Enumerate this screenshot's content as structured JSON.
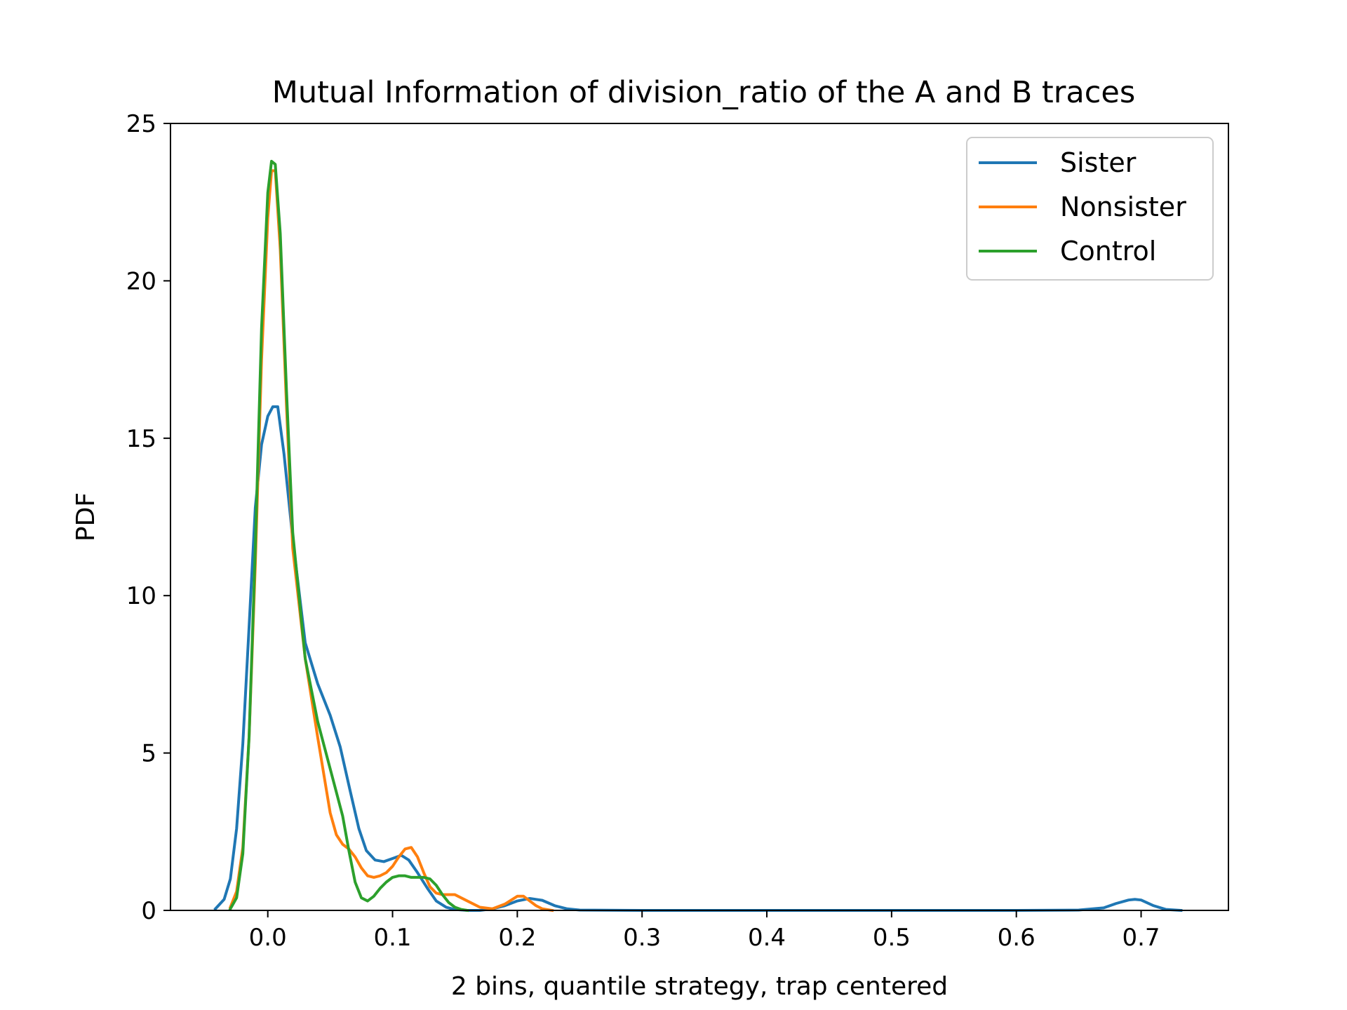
{
  "chart_data": {
    "type": "line",
    "title": "Mutual Information of division_ratio of the A and B traces",
    "xlabel": "2 bins, quantile strategy, trap centered",
    "ylabel": "PDF",
    "xlim": [
      -0.078,
      0.77
    ],
    "ylim": [
      0,
      25
    ],
    "xticks": [
      0.0,
      0.1,
      0.2,
      0.3,
      0.4,
      0.5,
      0.6,
      0.7
    ],
    "xtick_labels": [
      "0.0",
      "0.1",
      "0.2",
      "0.3",
      "0.4",
      "0.5",
      "0.6",
      "0.7"
    ],
    "yticks": [
      0,
      5,
      10,
      15,
      20,
      25
    ],
    "ytick_labels": [
      "0",
      "5",
      "10",
      "15",
      "20",
      "25"
    ],
    "grid": false,
    "legend_position": "top-right",
    "series": [
      {
        "name": "Sister",
        "color": "#1f77b4",
        "x": [
          -0.042,
          -0.035,
          -0.03,
          -0.025,
          -0.02,
          -0.015,
          -0.01,
          -0.005,
          0.0,
          0.004,
          0.008,
          0.013,
          0.02,
          0.03,
          0.04,
          0.05,
          0.058,
          0.066,
          0.073,
          0.079,
          0.086,
          0.093,
          0.1,
          0.107,
          0.113,
          0.12,
          0.128,
          0.135,
          0.143,
          0.15,
          0.16,
          0.17,
          0.18,
          0.19,
          0.2,
          0.21,
          0.22,
          0.23,
          0.24,
          0.25,
          0.3,
          0.4,
          0.5,
          0.6,
          0.65,
          0.67,
          0.68,
          0.69,
          0.695,
          0.7,
          0.71,
          0.72,
          0.732
        ],
        "y": [
          0.05,
          0.35,
          1.0,
          2.6,
          5.3,
          9.0,
          12.8,
          14.8,
          15.7,
          16.0,
          16.0,
          14.5,
          11.8,
          8.5,
          7.2,
          6.2,
          5.2,
          3.8,
          2.6,
          1.9,
          1.6,
          1.55,
          1.65,
          1.75,
          1.6,
          1.2,
          0.7,
          0.3,
          0.1,
          0.03,
          0.0,
          0.0,
          0.05,
          0.15,
          0.3,
          0.38,
          0.32,
          0.15,
          0.05,
          0.01,
          0.0,
          0.0,
          0.0,
          0.0,
          0.01,
          0.08,
          0.22,
          0.33,
          0.35,
          0.33,
          0.15,
          0.03,
          0.0
        ]
      },
      {
        "name": "Nonsister",
        "color": "#ff7f0e",
        "x": [
          -0.03,
          -0.025,
          -0.02,
          -0.015,
          -0.01,
          -0.005,
          0.0,
          0.003,
          0.006,
          0.01,
          0.015,
          0.02,
          0.03,
          0.04,
          0.045,
          0.05,
          0.055,
          0.06,
          0.065,
          0.07,
          0.075,
          0.08,
          0.085,
          0.09,
          0.095,
          0.1,
          0.105,
          0.11,
          0.115,
          0.12,
          0.125,
          0.13,
          0.135,
          0.14,
          0.15,
          0.16,
          0.17,
          0.18,
          0.19,
          0.2,
          0.205,
          0.21,
          0.215,
          0.22,
          0.228
        ],
        "y": [
          0.1,
          0.6,
          2.0,
          5.5,
          11.0,
          17.5,
          22.0,
          23.5,
          23.5,
          21.0,
          16.0,
          11.5,
          8.0,
          5.5,
          4.3,
          3.1,
          2.4,
          2.1,
          1.95,
          1.7,
          1.35,
          1.1,
          1.05,
          1.1,
          1.2,
          1.4,
          1.7,
          1.95,
          2.0,
          1.7,
          1.2,
          0.75,
          0.55,
          0.5,
          0.5,
          0.3,
          0.1,
          0.05,
          0.2,
          0.45,
          0.45,
          0.3,
          0.15,
          0.05,
          0.0
        ]
      },
      {
        "name": "Control",
        "color": "#2ca02c",
        "x": [
          -0.03,
          -0.025,
          -0.02,
          -0.015,
          -0.01,
          -0.005,
          0.0,
          0.003,
          0.006,
          0.01,
          0.015,
          0.02,
          0.03,
          0.04,
          0.05,
          0.06,
          0.065,
          0.07,
          0.075,
          0.08,
          0.085,
          0.09,
          0.095,
          0.1,
          0.105,
          0.11,
          0.115,
          0.12,
          0.125,
          0.13,
          0.135,
          0.14,
          0.145,
          0.15,
          0.155,
          0.16
        ],
        "y": [
          0.05,
          0.4,
          1.8,
          5.5,
          11.5,
          18.5,
          22.8,
          23.8,
          23.7,
          21.5,
          16.5,
          12.0,
          8.0,
          6.0,
          4.5,
          3.0,
          1.9,
          0.9,
          0.4,
          0.3,
          0.45,
          0.7,
          0.9,
          1.05,
          1.1,
          1.1,
          1.05,
          1.05,
          1.05,
          1.0,
          0.8,
          0.5,
          0.25,
          0.1,
          0.03,
          0.0
        ]
      }
    ]
  }
}
